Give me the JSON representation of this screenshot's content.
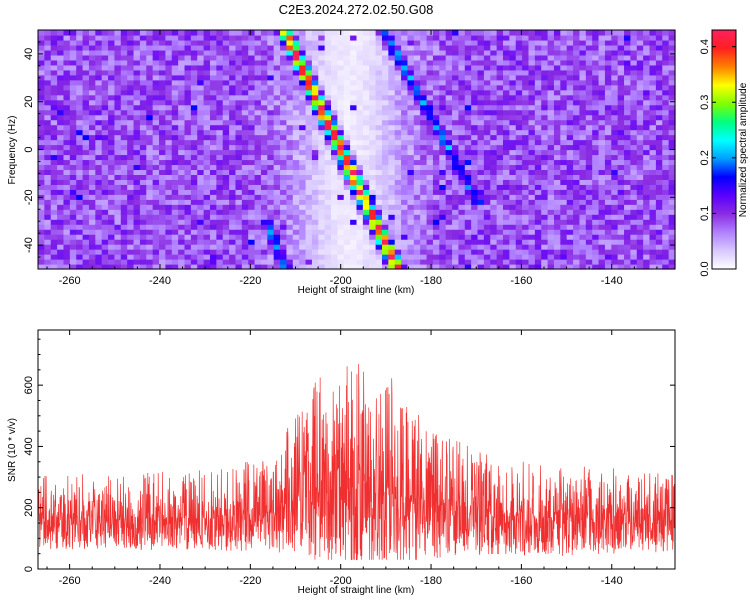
{
  "title": "C2E3.2024.272.02.50.G08",
  "colors": {
    "snr_line": "#f03030",
    "spectrogram_background": "#7a2df0",
    "clear_band": "#f4ecff",
    "colormap": [
      "#ffffff",
      "#d8c8ff",
      "#b080ff",
      "#8a2be2",
      "#5a00ff",
      "#0000ff",
      "#00a0ff",
      "#00ffff",
      "#00ff80",
      "#80ff00",
      "#ffff00",
      "#ff8000",
      "#ff2020",
      "#ff2060"
    ]
  },
  "chart_data": [
    {
      "type": "heatmap",
      "xlabel": "Height of straight line (km)",
      "ylabel": "Frequency (Hz)",
      "xlim": [
        -267,
        -126
      ],
      "ylim": [
        -50,
        50
      ],
      "x_ticks": [
        -260,
        -240,
        -220,
        -200,
        -180,
        -160,
        -140
      ],
      "y_ticks": [
        -40,
        -20,
        0,
        20,
        40
      ],
      "colorbar": {
        "label": "Normalized spectral amplitude",
        "range": [
          0,
          0.43
        ],
        "ticks": [
          0,
          0.1,
          0.2,
          0.3,
          0.4
        ]
      },
      "features": [
        {
          "kind": "diagonal-ridge",
          "from": [
            -212,
            48
          ],
          "to": [
            -188,
            -48
          ],
          "peak": 0.42
        },
        {
          "kind": "diagonal-ridge",
          "from": [
            -190,
            48
          ],
          "to": [
            -170,
            -20
          ],
          "peak": 0.2
        },
        {
          "kind": "diagonal-ridge",
          "from": [
            -216,
            -32
          ],
          "to": [
            -212,
            -50
          ],
          "peak": 0.2
        },
        {
          "kind": "low-amplitude-band",
          "center_x": -198,
          "width_km": 18
        }
      ],
      "grid": false
    },
    {
      "type": "line",
      "xlabel": "Height of straight line (km)",
      "ylabel": "SNR (10 * v/v)",
      "xlim": [
        -267,
        -126
      ],
      "ylim": [
        0,
        780
      ],
      "x_ticks": [
        -260,
        -240,
        -220,
        -200,
        -180,
        -160,
        -140
      ],
      "y_ticks": [
        0,
        200,
        400,
        600
      ],
      "envelope": {
        "x": [
          -267,
          -250,
          -230,
          -215,
          -210,
          -205,
          -200,
          -195,
          -190,
          -185,
          -180,
          -170,
          -160,
          -150,
          -140,
          -126
        ],
        "baseline": [
          160,
          160,
          165,
          180,
          230,
          260,
          260,
          260,
          250,
          230,
          200,
          180,
          170,
          160,
          160,
          160
        ],
        "spread": [
          150,
          150,
          160,
          190,
          280,
          380,
          420,
          430,
          400,
          330,
          260,
          210,
          200,
          180,
          170,
          160
        ]
      },
      "grid": false
    }
  ]
}
